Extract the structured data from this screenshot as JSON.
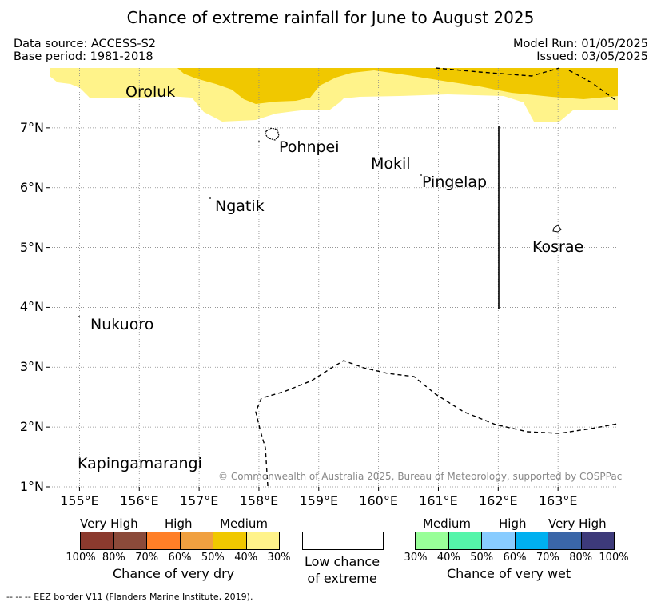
{
  "title": "Chance of extreme rainfall for June to August 2025",
  "meta": {
    "data_source": "Data source: ACCESS-S2",
    "base_period": "Base period: 1981-2018",
    "model_run": "Model Run: 01/05/2025",
    "issued": "Issued: 03/05/2025"
  },
  "map": {
    "lon_range": [
      154.5,
      164.0
    ],
    "lat_range": [
      1.0,
      8.0
    ],
    "x_ticks": [
      "155°E",
      "156°E",
      "157°E",
      "158°E",
      "159°E",
      "160°E",
      "161°E",
      "162°E",
      "163°E"
    ],
    "y_ticks": [
      "1°N",
      "2°N",
      "3°N",
      "4°N",
      "5°N",
      "6°N",
      "7°N"
    ],
    "grid": "dotted",
    "places": {
      "oroluk": "Oroluk",
      "pohnpei": "Pohnpei",
      "mokil": "Mokil",
      "pingelap": "Pingelap",
      "ngatik": "Ngatik",
      "kosrae": "Kosrae",
      "nukuoro": "Nukuoro",
      "kapingamarangi": "Kapingamarangi"
    },
    "shading": {
      "dry_medium_40_50": "#f0c800",
      "dry_medium_30_40": "#fff38a"
    },
    "credit": "© Commonwealth of Australia 2025, Bureau of Meteorology, supported by COSPPac"
  },
  "legend": {
    "dry": {
      "categories": [
        "Very High",
        "High",
        "Medium"
      ],
      "colors": [
        "#8b3a2e",
        "#8b4a3a",
        "#ff7f27",
        "#f0a040",
        "#f0c800",
        "#fff38a"
      ],
      "percents": [
        "100%",
        "80%",
        "70%",
        "60%",
        "50%",
        "40%",
        "30%"
      ],
      "title": "Chance of very dry"
    },
    "low": {
      "title_line1": "Low chance",
      "title_line2": "of extreme",
      "color": "#ffffff"
    },
    "wet": {
      "categories": [
        "Medium",
        "High",
        "Very High"
      ],
      "colors": [
        "#99ff99",
        "#55f5aa",
        "#88ccff",
        "#00b0f0",
        "#3a66a8",
        "#3d3a7a"
      ],
      "percents": [
        "30%",
        "40%",
        "50%",
        "60%",
        "70%",
        "80%",
        "100%"
      ],
      "title": "Chance of very wet"
    }
  },
  "eez_note": "-- -- -- EEZ border V11 (Flanders Marine Institute, 2019)."
}
